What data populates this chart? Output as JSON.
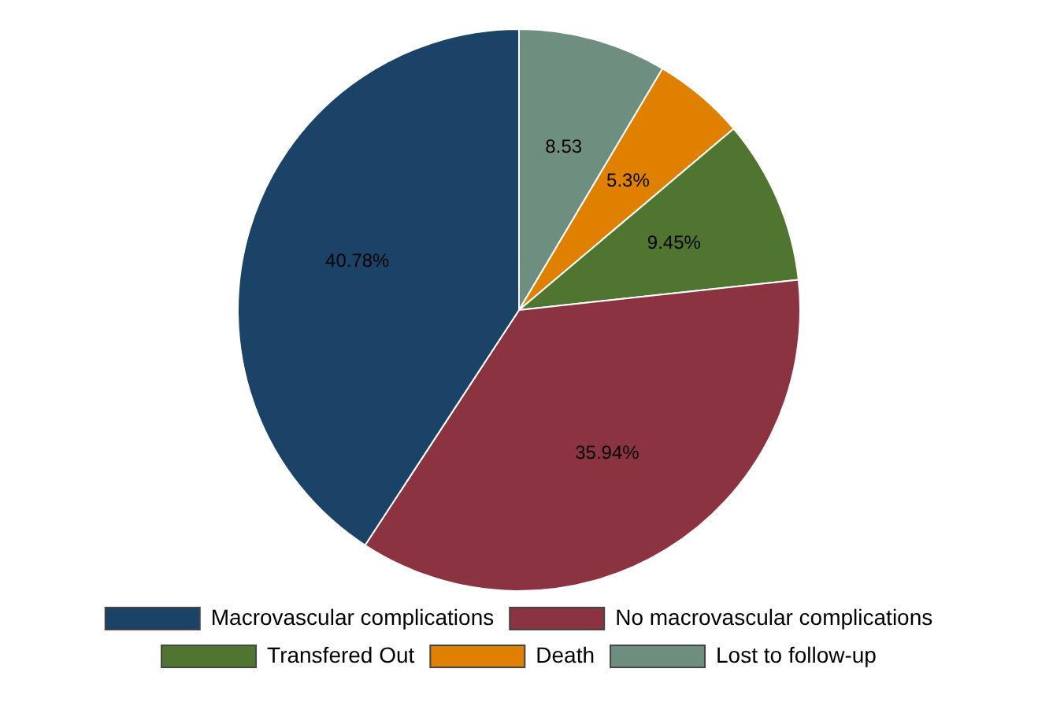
{
  "chart_data": {
    "type": "pie",
    "categories": [
      "Macrovascular complications",
      "No macrovascular complications",
      "Transfered Out",
      "Death",
      "Lost to follow-up"
    ],
    "values": [
      40.78,
      35.94,
      9.45,
      5.3,
      8.53
    ],
    "colors": [
      "#1b4368",
      "#8b3340",
      "#4f7530",
      "#e08000",
      "#6e8f80"
    ],
    "value_labels": [
      "40.78%",
      "35.94%",
      "9.45%",
      "5.3%",
      "8.53"
    ],
    "legend": "bottom"
  }
}
